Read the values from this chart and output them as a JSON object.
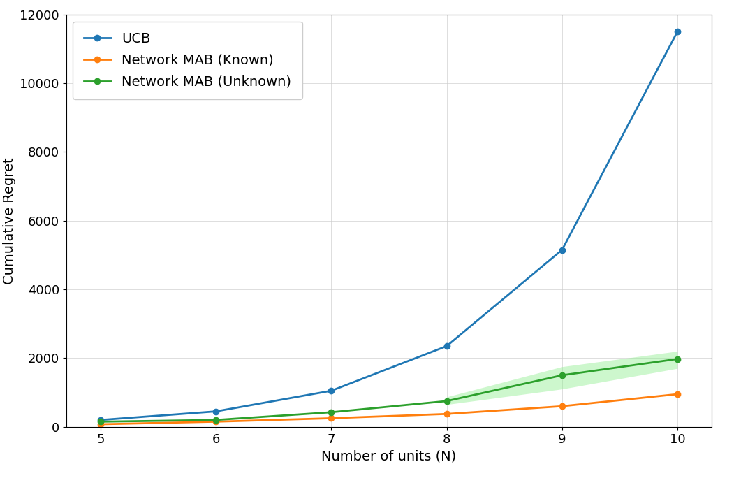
{
  "x": [
    5,
    6,
    7,
    8,
    9,
    10
  ],
  "ucb": [
    200,
    450,
    1050,
    2350,
    5150,
    11500
  ],
  "known": [
    75,
    150,
    250,
    375,
    600,
    950
  ],
  "unknown": [
    150,
    200,
    425,
    750,
    1500,
    1975
  ],
  "unknown_low": [
    150,
    200,
    425,
    650,
    1100,
    1700
  ],
  "unknown_high": [
    150,
    200,
    425,
    870,
    1750,
    2200
  ],
  "ucb_color": "#1f77b4",
  "known_color": "#ff7f0e",
  "unknown_color": "#2ca02c",
  "unknown_fill_color": "#90ee90",
  "xlabel": "Number of units (N)",
  "ylabel": "Cumulative Regret",
  "legend_ucb": "UCB",
  "legend_known": "Network MAB (Known)",
  "legend_unknown": "Network MAB (Unknown)",
  "ylim_min": 0,
  "ylim_max": 12000,
  "xlim_min": 4.7,
  "xlim_max": 10.3,
  "label_fontsize": 14,
  "tick_fontsize": 13,
  "legend_fontsize": 14
}
